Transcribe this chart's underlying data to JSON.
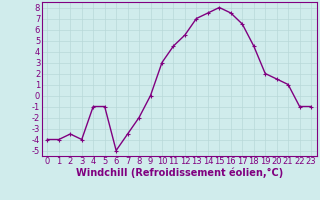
{
  "x": [
    0,
    1,
    2,
    3,
    4,
    5,
    6,
    7,
    8,
    9,
    10,
    11,
    12,
    13,
    14,
    15,
    16,
    17,
    18,
    19,
    20,
    21,
    22,
    23
  ],
  "y": [
    -4,
    -4,
    -3.5,
    -4,
    -1,
    -1,
    -5,
    -3.5,
    -2,
    0,
    3,
    4.5,
    5.5,
    7,
    7.5,
    8,
    7.5,
    6.5,
    4.5,
    2,
    1.5,
    1,
    -1,
    -1
  ],
  "line_color": "#800080",
  "marker_color": "#800080",
  "bg_color": "#d0ecec",
  "grid_color": "#b8d8d8",
  "xlabel": "Windchill (Refroidissement éolien,°C)",
  "ylabel": "",
  "title": "",
  "xlim": [
    -0.5,
    23.5
  ],
  "ylim": [
    -5.5,
    8.5
  ],
  "yticks": [
    -5,
    -4,
    -3,
    -2,
    -1,
    0,
    1,
    2,
    3,
    4,
    5,
    6,
    7,
    8
  ],
  "xticks": [
    0,
    1,
    2,
    3,
    4,
    5,
    6,
    7,
    8,
    9,
    10,
    11,
    12,
    13,
    14,
    15,
    16,
    17,
    18,
    19,
    20,
    21,
    22,
    23
  ],
  "xlabel_fontsize": 7.0,
  "tick_fontsize": 6.0,
  "line_width": 1.0,
  "marker_size": 3.0
}
